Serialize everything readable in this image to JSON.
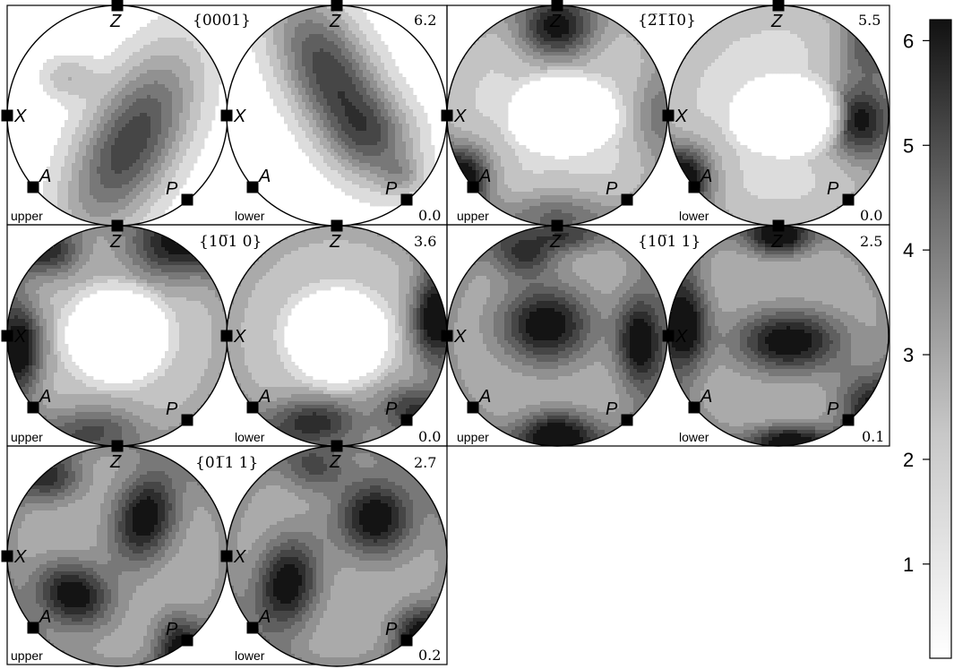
{
  "panels": [
    {
      "title": "{0001}",
      "max": "6.2",
      "min": "0.0",
      "upper_label": "upper",
      "lower_label": "lower",
      "axes": [
        "Z",
        "X",
        "A",
        "P"
      ],
      "upper_peaks": [
        [
          0.12,
          0.25,
          5.6,
          0.3,
          0.65,
          0.5
        ],
        [
          -0.45,
          -0.35,
          2.0,
          0.18,
          0.14,
          0
        ]
      ],
      "lower_peaks": [
        [
          -0.05,
          -0.35,
          5.6,
          0.28,
          0.6,
          -0.5
        ],
        [
          0.35,
          0.2,
          2.5,
          0.28,
          0.25,
          0.3
        ],
        [
          0.6,
          0.55,
          1.8,
          0.15,
          0.12,
          0
        ]
      ],
      "bg": 0
    },
    {
      "title": "{2̅1̅1̅0}",
      "max": "5.5",
      "min": "0.0",
      "upper_label": "upper",
      "lower_label": "lower",
      "axes": [
        "Z",
        "X",
        "A",
        "P"
      ],
      "upper_peaks": [
        [
          0.0,
          -0.8,
          5.0,
          0.25,
          0.2,
          0
        ],
        [
          -0.85,
          0.55,
          5.0,
          0.18,
          0.2,
          0
        ],
        [
          0.0,
          0.9,
          2.5,
          0.35,
          0.15,
          0
        ],
        [
          0.9,
          0.0,
          2.0,
          0.15,
          0.3,
          0
        ]
      ],
      "lower_peaks": [
        [
          0.75,
          0.05,
          4.8,
          0.2,
          0.25,
          0
        ],
        [
          -0.85,
          0.55,
          5.0,
          0.18,
          0.2,
          0
        ],
        [
          0.8,
          -0.6,
          2.5,
          0.2,
          0.2,
          0
        ]
      ],
      "bg": 1.2,
      "hole": [
        0.05,
        0.0,
        0.6,
        0.45
      ]
    },
    {
      "title": "{10̅1 0}",
      "max": "3.6",
      "min": "0.0",
      "upper_label": "upper",
      "lower_label": "lower",
      "axes": [
        "Z",
        "X",
        "A",
        "P"
      ],
      "upper_peaks": [
        [
          -0.88,
          0.1,
          3.3,
          0.14,
          0.28,
          0
        ],
        [
          0.5,
          -0.8,
          2.6,
          0.3,
          0.2,
          0
        ],
        [
          -0.6,
          -0.75,
          2.2,
          0.2,
          0.15,
          0
        ],
        [
          -0.2,
          0.85,
          1.8,
          0.3,
          0.15,
          0
        ]
      ],
      "lower_peaks": [
        [
          0.88,
          -0.15,
          3.3,
          0.14,
          0.28,
          0
        ],
        [
          -0.2,
          0.78,
          2.6,
          0.3,
          0.15,
          0
        ],
        [
          0.65,
          0.65,
          2.0,
          0.2,
          0.15,
          0
        ]
      ],
      "bg": 1.1,
      "hole": [
        0.0,
        0.0,
        0.6,
        0.55
      ]
    },
    {
      "title": "{10̅1 1}",
      "max": "2.5",
      "min": "0.1",
      "upper_label": "upper",
      "lower_label": "lower",
      "axes": [
        "Z",
        "X",
        "A",
        "P"
      ],
      "upper_peaks": [
        [
          -0.1,
          -0.1,
          2.3,
          0.3,
          0.25,
          0
        ],
        [
          0.75,
          0.05,
          2.3,
          0.15,
          0.3,
          0
        ],
        [
          0.0,
          0.9,
          2.3,
          0.25,
          0.15,
          0
        ],
        [
          -0.3,
          -0.75,
          1.6,
          0.2,
          0.15,
          0
        ],
        [
          0.1,
          -0.9,
          1.2,
          0.2,
          0.1,
          0
        ]
      ],
      "lower_peaks": [
        [
          0.1,
          0.05,
          2.3,
          0.35,
          0.2,
          0
        ],
        [
          -0.85,
          -0.1,
          2.3,
          0.15,
          0.3,
          0
        ],
        [
          0.0,
          -0.9,
          2.3,
          0.2,
          0.12,
          0
        ],
        [
          0.1,
          0.95,
          2.0,
          0.25,
          0.1,
          0
        ],
        [
          0.8,
          0.6,
          1.4,
          0.2,
          0.2,
          0
        ]
      ],
      "bg": 0.9
    },
    {
      "title": "{01̅1 1}",
      "max": "2.7",
      "min": "0.2",
      "upper_label": "upper",
      "lower_label": "lower",
      "axes": [
        "Z",
        "X",
        "A",
        "P"
      ],
      "upper_peaks": [
        [
          -0.4,
          0.35,
          2.4,
          0.25,
          0.2,
          0.4
        ],
        [
          0.25,
          -0.35,
          2.4,
          0.2,
          0.3,
          0.3
        ],
        [
          0.55,
          0.8,
          1.8,
          0.15,
          0.2,
          0
        ],
        [
          -0.6,
          -0.7,
          1.5,
          0.2,
          0.15,
          0
        ]
      ],
      "lower_peaks": [
        [
          -0.45,
          0.25,
          2.4,
          0.2,
          0.3,
          0.2
        ],
        [
          0.35,
          -0.35,
          2.4,
          0.25,
          0.25,
          0.5
        ],
        [
          0.75,
          0.7,
          1.8,
          0.18,
          0.18,
          0
        ],
        [
          -0.2,
          -0.8,
          1.3,
          0.2,
          0.15,
          0
        ]
      ],
      "bg": 1.0
    }
  ],
  "colorbar": {
    "ticks": [
      "1",
      "2",
      "3",
      "4",
      "5",
      "6"
    ],
    "tick_values": [
      1,
      2,
      3,
      4,
      5,
      6
    ],
    "range": [
      0.1,
      6.2
    ]
  }
}
